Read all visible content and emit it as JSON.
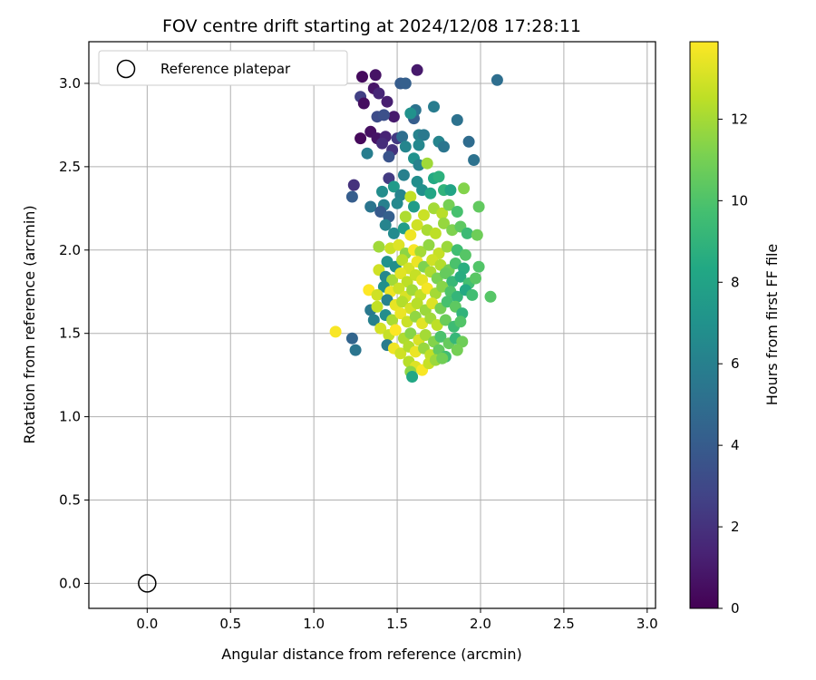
{
  "chart_data": {
    "type": "scatter",
    "title": "FOV centre drift starting at 2024/12/08 17:28:11",
    "xlabel": "Angular distance from reference (arcmin)",
    "ylabel": "Rotation from reference (arcmin)",
    "xlim": [
      -0.35,
      3.05
    ],
    "ylim": [
      -0.15,
      3.25
    ],
    "xticks": [
      "0.0",
      "0.5",
      "1.0",
      "1.5",
      "2.0",
      "2.5",
      "3.0"
    ],
    "yticks": [
      "0.0",
      "0.5",
      "1.0",
      "1.5",
      "2.0",
      "2.5",
      "3.0"
    ],
    "grid": true,
    "legend": {
      "position": "top-left",
      "entries": [
        "Reference platepar"
      ]
    },
    "reference_point": {
      "x": 0.0,
      "y": 0.0
    },
    "colorbar": {
      "label": "Hours from first FF file",
      "range": [
        0,
        13.9
      ],
      "ticks": [
        "0",
        "2",
        "4",
        "6",
        "8",
        "10",
        "12"
      ],
      "colormap": "viridis"
    },
    "points": [
      [
        1.29,
        3.04,
        0.4
      ],
      [
        1.37,
        3.05,
        0.7
      ],
      [
        1.62,
        3.08,
        1.0
      ],
      [
        2.1,
        3.02,
        5.0
      ],
      [
        1.52,
        3.0,
        4.0
      ],
      [
        1.55,
        3.0,
        4.2
      ],
      [
        1.36,
        2.97,
        0.8
      ],
      [
        1.28,
        2.92,
        2.6
      ],
      [
        1.39,
        2.94,
        1.5
      ],
      [
        1.3,
        2.88,
        0.5
      ],
      [
        1.44,
        2.89,
        1.2
      ],
      [
        1.48,
        2.8,
        1.0
      ],
      [
        1.38,
        2.8,
        3.2
      ],
      [
        1.42,
        2.81,
        3.4
      ],
      [
        1.6,
        2.79,
        4.1
      ],
      [
        1.61,
        2.84,
        5.3
      ],
      [
        1.58,
        2.82,
        7.0
      ],
      [
        1.72,
        2.86,
        5.8
      ],
      [
        1.86,
        2.78,
        5.2
      ],
      [
        1.34,
        2.71,
        0.6
      ],
      [
        1.38,
        2.67,
        0.7
      ],
      [
        1.28,
        2.67,
        0.3
      ],
      [
        1.43,
        2.68,
        1.4
      ],
      [
        1.41,
        2.64,
        1.8
      ],
      [
        1.47,
        2.6,
        2.0
      ],
      [
        1.5,
        2.67,
        2.3
      ],
      [
        1.53,
        2.68,
        5.0
      ],
      [
        1.63,
        2.69,
        6.1
      ],
      [
        1.66,
        2.69,
        5.6
      ],
      [
        1.63,
        2.63,
        6.4
      ],
      [
        1.75,
        2.65,
        6.2
      ],
      [
        1.78,
        2.62,
        5.4
      ],
      [
        1.93,
        2.65,
        4.9
      ],
      [
        1.32,
        2.58,
        5.9
      ],
      [
        1.45,
        2.56,
        3.6
      ],
      [
        1.55,
        2.62,
        6.3
      ],
      [
        1.6,
        2.55,
        7.0
      ],
      [
        1.63,
        2.51,
        6.1
      ],
      [
        1.68,
        2.52,
        11.9
      ],
      [
        1.96,
        2.54,
        5.2
      ],
      [
        1.45,
        2.43,
        2.4
      ],
      [
        1.54,
        2.45,
        6.0
      ],
      [
        1.62,
        2.41,
        6.8
      ],
      [
        1.72,
        2.43,
        8.4
      ],
      [
        1.75,
        2.44,
        8.8
      ],
      [
        1.24,
        2.39,
        2.0
      ],
      [
        1.23,
        2.32,
        4.1
      ],
      [
        1.41,
        2.35,
        6.7
      ],
      [
        1.48,
        2.38,
        7.5
      ],
      [
        1.52,
        2.33,
        6.2
      ],
      [
        1.58,
        2.32,
        12.6
      ],
      [
        1.65,
        2.36,
        6.9
      ],
      [
        1.7,
        2.34,
        8.2
      ],
      [
        1.78,
        2.36,
        9.0
      ],
      [
        1.82,
        2.36,
        8.1
      ],
      [
        1.9,
        2.37,
        11.3
      ],
      [
        1.34,
        2.26,
        5.4
      ],
      [
        1.42,
        2.27,
        6.0
      ],
      [
        1.4,
        2.23,
        3.9
      ],
      [
        1.45,
        2.2,
        4.2
      ],
      [
        1.5,
        2.28,
        6.5
      ],
      [
        1.55,
        2.2,
        12.2
      ],
      [
        1.6,
        2.26,
        7.6
      ],
      [
        1.66,
        2.21,
        12.8
      ],
      [
        1.72,
        2.25,
        12.0
      ],
      [
        1.77,
        2.22,
        12.4
      ],
      [
        1.81,
        2.27,
        11.0
      ],
      [
        1.86,
        2.23,
        9.8
      ],
      [
        1.99,
        2.26,
        10.5
      ],
      [
        1.43,
        2.15,
        6.2
      ],
      [
        1.48,
        2.1,
        6.6
      ],
      [
        1.54,
        2.13,
        7.7
      ],
      [
        1.58,
        2.09,
        13.6
      ],
      [
        1.62,
        2.15,
        12.9
      ],
      [
        1.68,
        2.12,
        12.1
      ],
      [
        1.73,
        2.1,
        12.5
      ],
      [
        1.78,
        2.16,
        11.7
      ],
      [
        1.83,
        2.12,
        11.2
      ],
      [
        1.88,
        2.14,
        10.4
      ],
      [
        1.92,
        2.1,
        9.4
      ],
      [
        1.98,
        2.09,
        10.8
      ],
      [
        1.39,
        2.02,
        11.9
      ],
      [
        1.46,
        2.01,
        12.8
      ],
      [
        1.51,
        2.03,
        13.2
      ],
      [
        1.55,
        1.98,
        11.5
      ],
      [
        1.6,
        2.0,
        13.8
      ],
      [
        1.64,
        1.99,
        12.0
      ],
      [
        1.69,
        2.03,
        11.6
      ],
      [
        1.75,
        1.98,
        12.7
      ],
      [
        1.8,
        2.02,
        11.8
      ],
      [
        1.86,
        2.0,
        9.6
      ],
      [
        1.91,
        1.97,
        10.2
      ],
      [
        1.44,
        1.93,
        7.0
      ],
      [
        1.49,
        1.9,
        6.8
      ],
      [
        1.53,
        1.94,
        12.4
      ],
      [
        1.57,
        1.89,
        13.0
      ],
      [
        1.62,
        1.93,
        13.5
      ],
      [
        1.66,
        1.9,
        11.2
      ],
      [
        1.71,
        1.94,
        12.9
      ],
      [
        1.76,
        1.91,
        12.3
      ],
      [
        1.81,
        1.88,
        10.9
      ],
      [
        1.85,
        1.92,
        9.9
      ],
      [
        1.9,
        1.89,
        8.7
      ],
      [
        1.99,
        1.9,
        10.1
      ],
      [
        1.39,
        1.88,
        12.9
      ],
      [
        1.43,
        1.84,
        6.4
      ],
      [
        1.47,
        1.82,
        12.0
      ],
      [
        1.52,
        1.86,
        13.3
      ],
      [
        1.56,
        1.81,
        12.5
      ],
      [
        1.61,
        1.85,
        12.7
      ],
      [
        1.65,
        1.82,
        13.4
      ],
      [
        1.7,
        1.87,
        12.2
      ],
      [
        1.74,
        1.83,
        11.1
      ],
      [
        1.79,
        1.86,
        10.6
      ],
      [
        1.83,
        1.81,
        9.3
      ],
      [
        1.88,
        1.84,
        8.6
      ],
      [
        1.93,
        1.8,
        9.7
      ],
      [
        1.97,
        1.83,
        10.3
      ],
      [
        1.42,
        1.78,
        6.9
      ],
      [
        1.46,
        1.75,
        13.6
      ],
      [
        1.51,
        1.77,
        12.8
      ],
      [
        1.55,
        1.72,
        13.1
      ],
      [
        1.59,
        1.76,
        11.9
      ],
      [
        1.64,
        1.73,
        12.6
      ],
      [
        1.68,
        1.77,
        13.7
      ],
      [
        1.73,
        1.74,
        12.0
      ],
      [
        1.77,
        1.78,
        11.4
      ],
      [
        1.82,
        1.75,
        10.0
      ],
      [
        1.86,
        1.72,
        9.1
      ],
      [
        1.91,
        1.76,
        8.4
      ],
      [
        1.95,
        1.73,
        9.6
      ],
      [
        2.06,
        1.72,
        10.2
      ],
      [
        1.33,
        1.76,
        13.9
      ],
      [
        1.38,
        1.73,
        12.9
      ],
      [
        1.44,
        1.7,
        6.1
      ],
      [
        1.49,
        1.67,
        13.4
      ],
      [
        1.53,
        1.69,
        12.3
      ],
      [
        1.58,
        1.65,
        13.0
      ],
      [
        1.62,
        1.68,
        12.4
      ],
      [
        1.67,
        1.64,
        11.8
      ],
      [
        1.71,
        1.68,
        13.2
      ],
      [
        1.76,
        1.65,
        11.0
      ],
      [
        1.8,
        1.69,
        9.8
      ],
      [
        1.85,
        1.66,
        10.4
      ],
      [
        1.89,
        1.62,
        9.0
      ],
      [
        1.34,
        1.64,
        5.6
      ],
      [
        1.38,
        1.66,
        12.6
      ],
      [
        1.43,
        1.61,
        6.7
      ],
      [
        1.47,
        1.58,
        12.1
      ],
      [
        1.52,
        1.62,
        13.5
      ],
      [
        1.56,
        1.57,
        12.8
      ],
      [
        1.61,
        1.6,
        11.6
      ],
      [
        1.65,
        1.56,
        13.3
      ],
      [
        1.7,
        1.59,
        11.9
      ],
      [
        1.74,
        1.55,
        12.5
      ],
      [
        1.79,
        1.58,
        10.7
      ],
      [
        1.84,
        1.54,
        9.5
      ],
      [
        1.88,
        1.57,
        10.1
      ],
      [
        1.13,
        1.51,
        13.8
      ],
      [
        1.36,
        1.58,
        6.0
      ],
      [
        1.4,
        1.53,
        13.0
      ],
      [
        1.45,
        1.49,
        12.7
      ],
      [
        1.49,
        1.52,
        13.9
      ],
      [
        1.54,
        1.47,
        12.2
      ],
      [
        1.58,
        1.5,
        11.4
      ],
      [
        1.63,
        1.46,
        13.1
      ],
      [
        1.67,
        1.49,
        12.0
      ],
      [
        1.72,
        1.45,
        11.3
      ],
      [
        1.76,
        1.48,
        9.9
      ],
      [
        1.81,
        1.44,
        10.6
      ],
      [
        1.85,
        1.47,
        9.2
      ],
      [
        1.89,
        1.45,
        10.8
      ],
      [
        1.23,
        1.47,
        4.5
      ],
      [
        1.25,
        1.4,
        5.4
      ],
      [
        1.44,
        1.43,
        5.8
      ],
      [
        1.48,
        1.41,
        13.6
      ],
      [
        1.52,
        1.38,
        12.9
      ],
      [
        1.57,
        1.42,
        12.3
      ],
      [
        1.61,
        1.39,
        13.5
      ],
      [
        1.66,
        1.41,
        11.7
      ],
      [
        1.7,
        1.37,
        12.6
      ],
      [
        1.75,
        1.4,
        10.5
      ],
      [
        1.79,
        1.36,
        9.6
      ],
      [
        1.86,
        1.4,
        11.0
      ],
      [
        1.57,
        1.33,
        12.4
      ],
      [
        1.61,
        1.3,
        13.2
      ],
      [
        1.65,
        1.28,
        13.8
      ],
      [
        1.69,
        1.32,
        12.7
      ],
      [
        1.73,
        1.34,
        11.8
      ],
      [
        1.77,
        1.35,
        10.9
      ],
      [
        1.58,
        1.27,
        11.5
      ],
      [
        1.59,
        1.24,
        8.3
      ]
    ]
  }
}
